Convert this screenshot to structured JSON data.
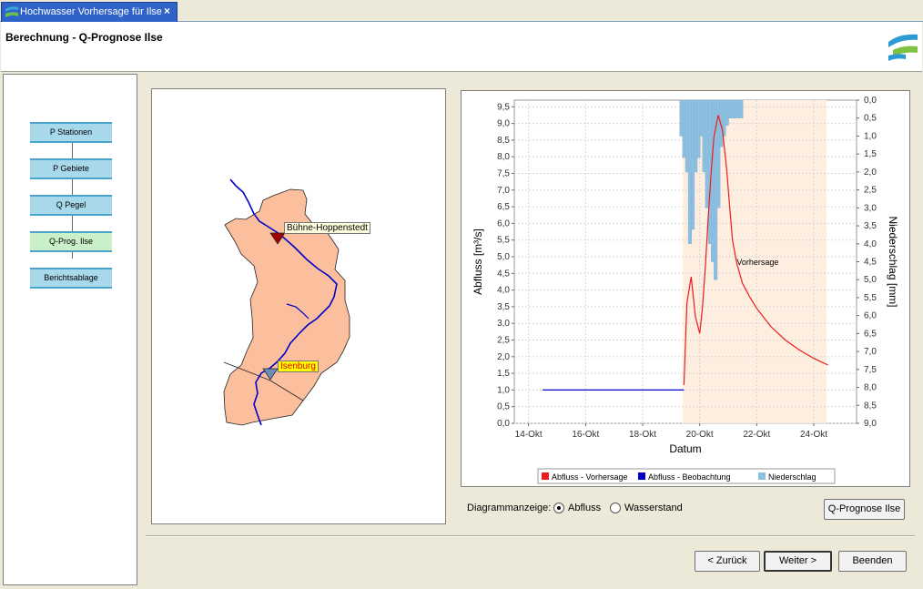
{
  "tab": {
    "title": "Hochwasser Vorhersage für Ilse",
    "close_icon": "×"
  },
  "header": {
    "title": "Berechnung - Q-Prognose Ilse"
  },
  "steps": [
    {
      "label": "P Stationen"
    },
    {
      "label": "P Gebiete"
    },
    {
      "label": "Q Pegel"
    },
    {
      "label": "Q-Prog. Ilse",
      "active": true
    },
    {
      "label": "Berichtsablage"
    }
  ],
  "map": {
    "labels": {
      "buehne": "Bühne-Hoppenstedt",
      "isenburg": "Isenburg"
    },
    "colors": {
      "catchment": "#fbbf9d",
      "river": "#0000cc",
      "gauge_buehne": "#a00000",
      "gauge_isenburg": "#6b8fb5"
    }
  },
  "chart_data": {
    "type": "line",
    "xlabel": "Datum",
    "ylabel": "Abfluss [m³/s]",
    "y2label": "Niederschlag [mm]",
    "x_ticks": [
      "14-Okt",
      "16-Okt",
      "18-Okt",
      "20-Okt",
      "22-Okt",
      "24-Okt"
    ],
    "x_range": [
      "13-Okt 12:00",
      "25-Okt 12:00"
    ],
    "ylim": [
      0.0,
      9.7
    ],
    "y_ticks": [
      "0,0",
      "0,5",
      "1,0",
      "1,5",
      "2,0",
      "2,5",
      "3,0",
      "3,5",
      "4,0",
      "4,5",
      "5,0",
      "5,5",
      "6,0",
      "6,5",
      "7,0",
      "7,5",
      "8,0",
      "8,5",
      "9,0",
      "9,5"
    ],
    "y2lim": [
      0.0,
      9.0
    ],
    "y2_ticks": [
      "0,0",
      "0,5",
      "1,0",
      "1,5",
      "2,0",
      "2,5",
      "3,0",
      "3,5",
      "4,0",
      "4,5",
      "5,0",
      "5,5",
      "6,0",
      "6,5",
      "7,0",
      "7,5",
      "8,0",
      "8,5",
      "9,0"
    ],
    "y2_inverted": true,
    "grid": true,
    "forecast_band": {
      "from_day": 19.4,
      "to_day": 24.45,
      "label": "Vorhersage",
      "color": "#fdeee0"
    },
    "series": [
      {
        "name": "Abfluss - Vorhersage",
        "color": "#ee1c1c",
        "x": [
          19.45,
          19.55,
          19.7,
          19.85,
          20.0,
          20.1,
          20.2,
          20.3,
          20.4,
          20.5,
          20.65,
          20.8,
          20.95,
          21.05,
          21.15,
          21.3,
          21.5,
          21.75,
          22.0,
          22.5,
          23.0,
          23.5,
          24.0,
          24.5
        ],
        "y": [
          1.15,
          3.6,
          4.4,
          3.2,
          2.7,
          3.5,
          4.7,
          6.2,
          7.5,
          8.6,
          9.25,
          8.8,
          7.6,
          6.5,
          5.5,
          4.8,
          4.2,
          3.8,
          3.45,
          2.9,
          2.5,
          2.2,
          1.95,
          1.75
        ]
      },
      {
        "name": "Abfluss - Beobachtung",
        "color": "#0000cc",
        "x": [
          14.5,
          19.45
        ],
        "y": [
          1.0,
          1.0
        ]
      },
      {
        "name": "Niederschlag",
        "color": "#8dbfe0",
        "type": "bar",
        "x": [
          19.3,
          19.4,
          19.5,
          19.6,
          19.7,
          19.8,
          19.9,
          20.0,
          20.1,
          20.2,
          20.3,
          20.4,
          20.5,
          20.6,
          20.7,
          20.8,
          20.9,
          21.0,
          21.1,
          21.2,
          21.3,
          21.4
        ],
        "y": [
          1.0,
          1.6,
          2.0,
          4.0,
          3.6,
          2.0,
          1.6,
          1.0,
          2.0,
          3.0,
          4.0,
          4.5,
          5.0,
          3.0,
          1.3,
          1.0,
          0.7,
          0.5,
          0.5,
          0.5,
          0.5,
          0.5
        ]
      }
    ],
    "legend": {
      "position": "bottom"
    }
  },
  "display_options": {
    "label": "Diagrammanzeige:",
    "option_flow": "Abfluss",
    "option_level": "Wasserstand",
    "selected": "flow"
  },
  "buttons": {
    "q_prognose": "Q-Prognose Ilse",
    "back": "< Zurück",
    "next": "Weiter >",
    "finish": "Beenden"
  }
}
